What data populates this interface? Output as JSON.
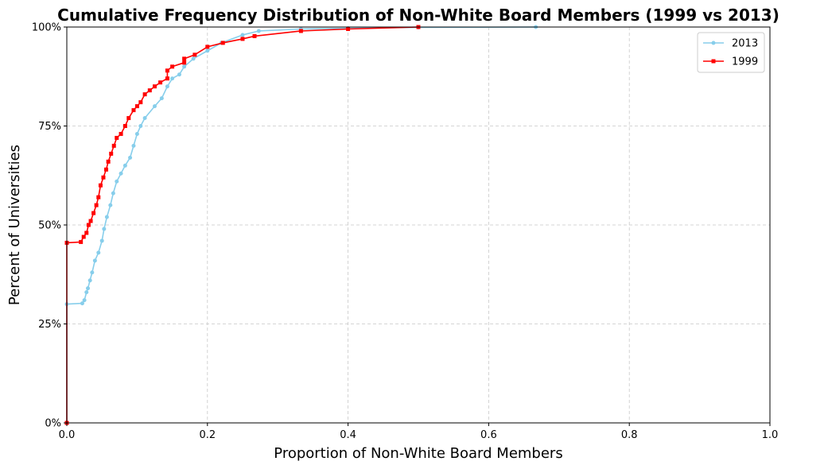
{
  "chart_data": {
    "type": "line",
    "title": "Cumulative Frequency Distribution of Non-White Board Members (1999 vs 2013)",
    "xlabel": "Proportion of Non-White Board Members",
    "ylabel": "Percent of Universities",
    "xlim": [
      0,
      1
    ],
    "ylim": [
      0,
      1
    ],
    "x_ticks": [
      0,
      0.2,
      0.4,
      0.6,
      0.8,
      1.0
    ],
    "x_tick_labels": [
      "0.0",
      "0.2",
      "0.4",
      "0.6",
      "0.8",
      "1.0"
    ],
    "y_ticks": [
      0,
      0.25,
      0.5,
      0.75,
      1.0
    ],
    "y_tick_labels": [
      "0%",
      "25%",
      "50%",
      "75%",
      "100%"
    ],
    "grid": true,
    "legend_position": "top-right",
    "series": [
      {
        "name": "2013",
        "color": "#87CEEB",
        "marker": "circle",
        "points": [
          [
            0,
            0
          ],
          [
            0,
            0.3
          ],
          [
            0.022,
            0.302
          ],
          [
            0.025,
            0.31
          ],
          [
            0.028,
            0.33
          ],
          [
            0.03,
            0.34
          ],
          [
            0.033,
            0.36
          ],
          [
            0.036,
            0.38
          ],
          [
            0.04,
            0.41
          ],
          [
            0.045,
            0.43
          ],
          [
            0.05,
            0.46
          ],
          [
            0.053,
            0.49
          ],
          [
            0.057,
            0.52
          ],
          [
            0.062,
            0.55
          ],
          [
            0.066,
            0.58
          ],
          [
            0.071,
            0.61
          ],
          [
            0.077,
            0.63
          ],
          [
            0.083,
            0.65
          ],
          [
            0.09,
            0.67
          ],
          [
            0.095,
            0.7
          ],
          [
            0.1,
            0.73
          ],
          [
            0.105,
            0.75
          ],
          [
            0.111,
            0.77
          ],
          [
            0.125,
            0.8
          ],
          [
            0.135,
            0.82
          ],
          [
            0.143,
            0.85
          ],
          [
            0.15,
            0.87
          ],
          [
            0.16,
            0.88
          ],
          [
            0.167,
            0.9
          ],
          [
            0.18,
            0.92
          ],
          [
            0.2,
            0.94
          ],
          [
            0.22,
            0.96
          ],
          [
            0.25,
            0.98
          ],
          [
            0.273,
            0.99
          ],
          [
            0.333,
            0.995
          ],
          [
            0.4,
            0.997
          ],
          [
            0.5,
            0.999
          ],
          [
            0.667,
            1.0
          ]
        ]
      },
      {
        "name": "1999",
        "color": "#FF0000",
        "marker": "square",
        "points": [
          [
            0,
            0
          ],
          [
            0,
            0.455
          ],
          [
            0.02,
            0.457
          ],
          [
            0.024,
            0.47
          ],
          [
            0.028,
            0.48
          ],
          [
            0.031,
            0.5
          ],
          [
            0.034,
            0.51
          ],
          [
            0.038,
            0.53
          ],
          [
            0.042,
            0.55
          ],
          [
            0.045,
            0.57
          ],
          [
            0.048,
            0.6
          ],
          [
            0.052,
            0.62
          ],
          [
            0.056,
            0.64
          ],
          [
            0.059,
            0.66
          ],
          [
            0.063,
            0.68
          ],
          [
            0.067,
            0.7
          ],
          [
            0.071,
            0.72
          ],
          [
            0.077,
            0.73
          ],
          [
            0.083,
            0.75
          ],
          [
            0.088,
            0.77
          ],
          [
            0.095,
            0.79
          ],
          [
            0.1,
            0.8
          ],
          [
            0.105,
            0.81
          ],
          [
            0.111,
            0.83
          ],
          [
            0.118,
            0.84
          ],
          [
            0.125,
            0.85
          ],
          [
            0.133,
            0.86
          ],
          [
            0.143,
            0.87
          ],
          [
            0.143,
            0.89
          ],
          [
            0.15,
            0.9
          ],
          [
            0.167,
            0.91
          ],
          [
            0.167,
            0.92
          ],
          [
            0.182,
            0.93
          ],
          [
            0.2,
            0.95
          ],
          [
            0.222,
            0.96
          ],
          [
            0.25,
            0.97
          ],
          [
            0.267,
            0.977
          ],
          [
            0.333,
            0.99
          ],
          [
            0.4,
            0.995
          ],
          [
            0.5,
            1.0
          ]
        ]
      }
    ]
  }
}
